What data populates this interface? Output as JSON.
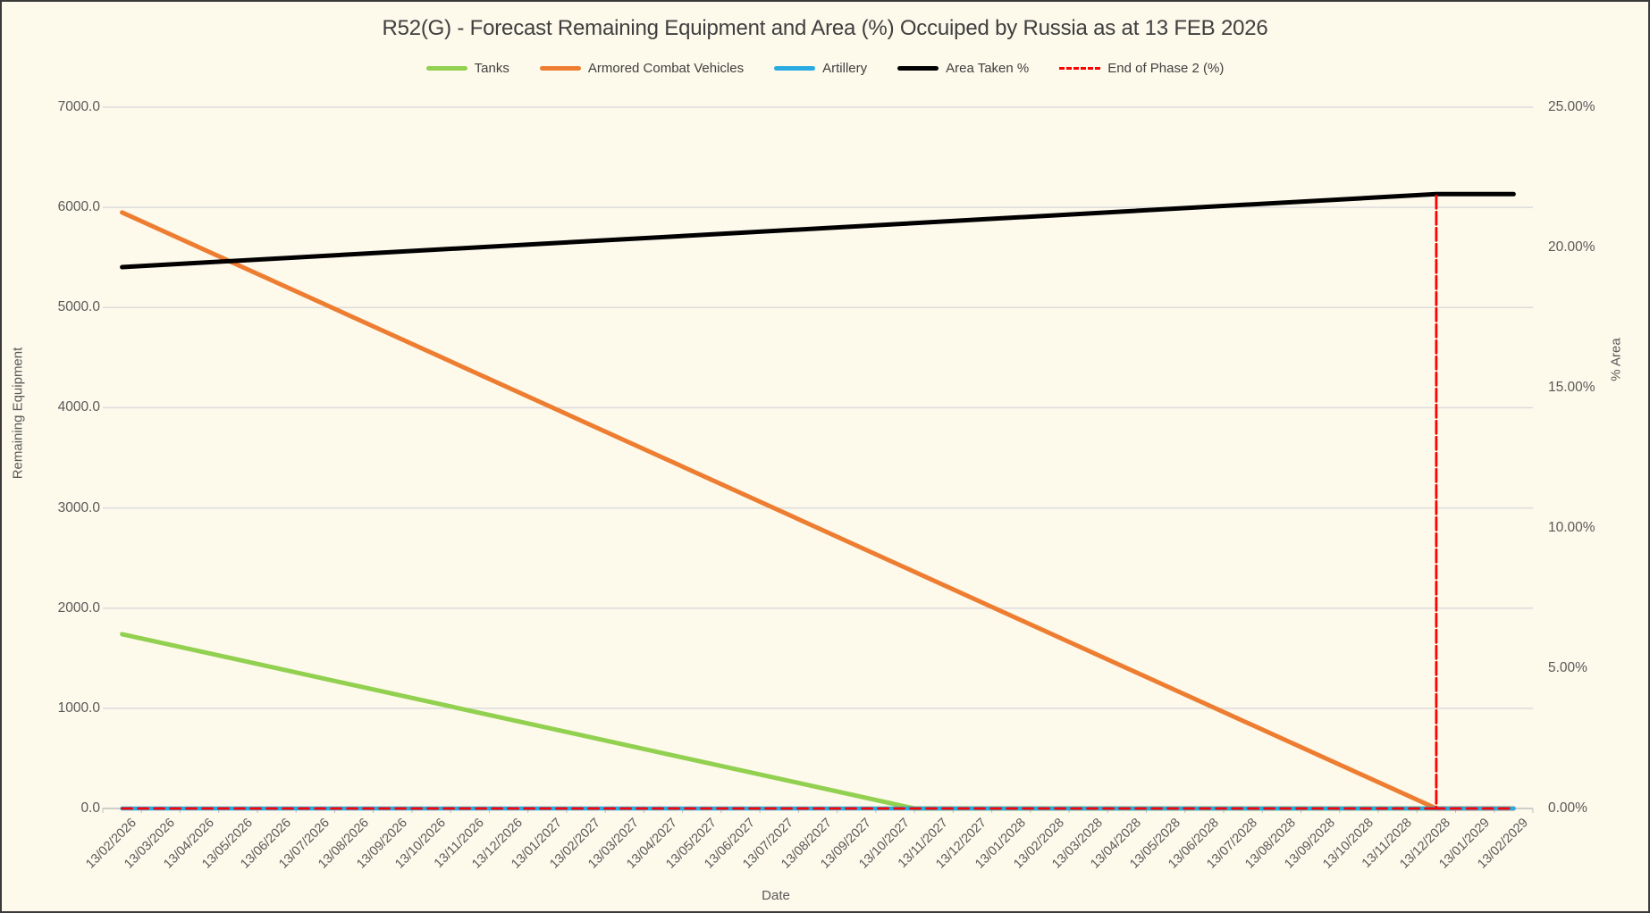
{
  "page": {
    "background": "#FDF9EB",
    "border_color": "#3A3A3A"
  },
  "chart_data": {
    "type": "line",
    "title": "R52(G) - Forecast Remaining Equipment and Area (%) Occuiped by Russia as at 13 FEB 2026",
    "x_label": "Date",
    "grid": "horizontal",
    "legend_position": "top",
    "colors": {
      "grid": "#DCDCDC",
      "axis_line": "#BFBFBF",
      "tick_text": "#595959",
      "title_text": "#3F3F3F"
    },
    "y_left": {
      "label": "Remaining Equipment",
      "min": 0,
      "max": 7000,
      "tick_values": [
        0,
        1000,
        2000,
        3000,
        4000,
        5000,
        6000,
        7000
      ],
      "tick_labels": [
        "0.0",
        "1000.0",
        "2000.0",
        "3000.0",
        "4000.0",
        "5000.0",
        "6000.0",
        "7000.0"
      ]
    },
    "y_right": {
      "label": "% Area",
      "min": 0,
      "max": 25,
      "tick_values": [
        0,
        5,
        10,
        15,
        20,
        25
      ],
      "tick_labels": [
        "0.00%",
        "5.00%",
        "10.00%",
        "15.00%",
        "20.00%",
        "25.00%"
      ]
    },
    "x_categories": [
      "13/02/2026",
      "13/03/2026",
      "13/04/2026",
      "13/05/2026",
      "13/06/2026",
      "13/07/2026",
      "13/08/2026",
      "13/09/2026",
      "13/10/2026",
      "13/11/2026",
      "13/12/2026",
      "13/01/2027",
      "13/02/2027",
      "13/03/2027",
      "13/04/2027",
      "13/05/2027",
      "13/06/2027",
      "13/07/2027",
      "13/08/2027",
      "13/09/2027",
      "13/10/2027",
      "13/11/2027",
      "13/12/2027",
      "13/01/2028",
      "13/02/2028",
      "13/03/2028",
      "13/04/2028",
      "13/05/2028",
      "13/06/2028",
      "13/07/2028",
      "13/08/2028",
      "13/09/2028",
      "13/10/2028",
      "13/11/2028",
      "13/12/2028",
      "13/01/2029",
      "13/02/2029"
    ],
    "series": [
      {
        "name": "Tanks",
        "axis": "left",
        "color": "#92D050",
        "stroke_width": 5,
        "dash": null,
        "start_value": 1740,
        "monthly_loss": 85,
        "reaches_zero_between": [
          "13/10/2027",
          "13/11/2027"
        ],
        "points": [
          [
            0,
            1740
          ],
          [
            20.5,
            0
          ],
          [
            36,
            0
          ]
        ]
      },
      {
        "name": "Armored Combat Vehicles",
        "axis": "left",
        "color": "#ED7D31",
        "stroke_width": 5,
        "dash": null,
        "start_value": 5950,
        "monthly_loss": 175,
        "reaches_zero_at": "13/12/2028",
        "points": [
          [
            0,
            5950
          ],
          [
            34,
            0
          ],
          [
            36,
            0
          ]
        ]
      },
      {
        "name": "Artillery",
        "axis": "left",
        "color": "#29ABE2",
        "stroke_width": 4.5,
        "dash": null,
        "start_value": 0,
        "points": [
          [
            0,
            0
          ],
          [
            36,
            0
          ]
        ]
      },
      {
        "name": "Area Taken %",
        "axis": "right",
        "color": "#000000",
        "stroke_width": 5,
        "dash": null,
        "start_value_pct": 19.3,
        "end_value_pct": 21.9,
        "plateau_from": "13/12/2028",
        "points": [
          [
            0,
            19.3
          ],
          [
            34,
            21.9
          ],
          [
            36,
            21.9
          ]
        ]
      },
      {
        "name": "End of Phase 2 (%)",
        "axis": "right",
        "color": "#FF0000",
        "stroke_width": 2.8,
        "dash": "11 7",
        "baseline_pct": 0,
        "spike_category": "13/12/2028",
        "spike_value_pct": 21.9,
        "points": [
          [
            0,
            0
          ],
          [
            34,
            0
          ],
          [
            34,
            21.9
          ],
          [
            34,
            0
          ],
          [
            36,
            0
          ]
        ]
      }
    ]
  }
}
